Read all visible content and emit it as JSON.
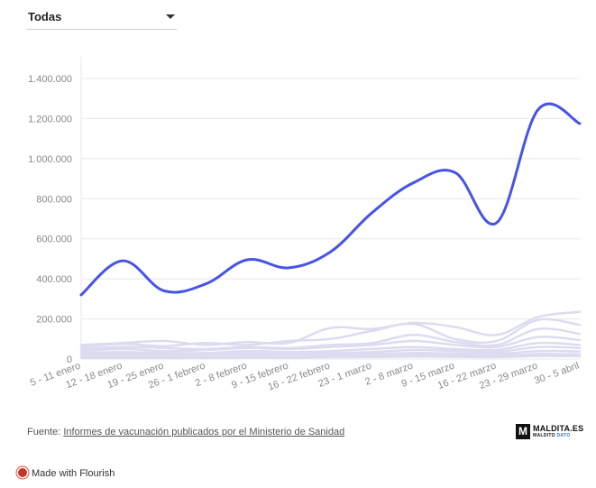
{
  "filter": {
    "selected": "Todas"
  },
  "footer": {
    "source_prefix": "Fuente: ",
    "source_link": "Informes de vacunación publicados por el Ministerio de Sanidad"
  },
  "logo": {
    "box_letter": "M",
    "main": "MALDITA.ES",
    "sub_prefix": "MALDITO ",
    "sub_highlight": "DATO"
  },
  "flourish": {
    "label": "Made with Flourish"
  },
  "colors": {
    "highlight": "#4654e8",
    "background_series": "#dcdcf0",
    "grid": "#e8e8e8",
    "axis_text": "#888888"
  },
  "chart_data": {
    "type": "line",
    "title": "",
    "xlabel": "",
    "ylabel": "",
    "ylim": [
      0,
      1400000
    ],
    "y_ticks": [
      0,
      200000,
      400000,
      600000,
      800000,
      1000000,
      1200000,
      1400000
    ],
    "y_tick_labels": [
      "0",
      "200.000",
      "400.000",
      "600.000",
      "800.000",
      "1.000.000",
      "1.200.000",
      "1.400.000"
    ],
    "categories": [
      "5 - 11 enero",
      "12 - 18 enero",
      "19 - 25 enero",
      "26 - 1 febrero",
      "2 - 8 febrero",
      "9 - 15 febrero",
      "16 - 22 febrero",
      "23 - 1 marzo",
      "2 - 8 marzo",
      "9 - 15 marzo",
      "16 - 22 marzo",
      "23 - 29 marzo",
      "30 - 5 abril"
    ],
    "grid": true,
    "highlight_series": {
      "values": [
        320000,
        490000,
        340000,
        375000,
        495000,
        455000,
        535000,
        730000,
        880000,
        930000,
        680000,
        1245000,
        1175000
      ]
    },
    "background_series": [
      {
        "values": [
          70000,
          80000,
          90000,
          70000,
          85000,
          80000,
          155000,
          150000,
          180000,
          160000,
          120000,
          210000,
          235000
        ]
      },
      {
        "values": [
          60000,
          75000,
          65000,
          80000,
          70000,
          90000,
          100000,
          140000,
          175000,
          100000,
          90000,
          195000,
          170000
        ]
      },
      {
        "values": [
          50000,
          60000,
          55000,
          50000,
          60000,
          55000,
          70000,
          80000,
          120000,
          85000,
          70000,
          150000,
          125000
        ]
      },
      {
        "values": [
          40000,
          50000,
          40000,
          45000,
          55000,
          50000,
          60000,
          70000,
          90000,
          70000,
          60000,
          110000,
          95000
        ]
      },
      {
        "values": [
          30000,
          35000,
          30000,
          30000,
          40000,
          35000,
          40000,
          50000,
          60000,
          50000,
          45000,
          80000,
          70000
        ]
      },
      {
        "values": [
          20000,
          25000,
          20000,
          22000,
          30000,
          25000,
          30000,
          35000,
          45000,
          40000,
          35000,
          60000,
          55000
        ]
      },
      {
        "values": [
          15000,
          18000,
          15000,
          16000,
          20000,
          18000,
          22000,
          25000,
          30000,
          28000,
          25000,
          40000,
          38000
        ]
      },
      {
        "values": [
          10000,
          12000,
          10000,
          11000,
          14000,
          12000,
          15000,
          18000,
          20000,
          18000,
          16000,
          25000,
          24000
        ]
      },
      {
        "values": [
          5000,
          6000,
          5000,
          6000,
          8000,
          7000,
          9000,
          10000,
          12000,
          11000,
          10000,
          15000,
          14000
        ]
      }
    ]
  }
}
